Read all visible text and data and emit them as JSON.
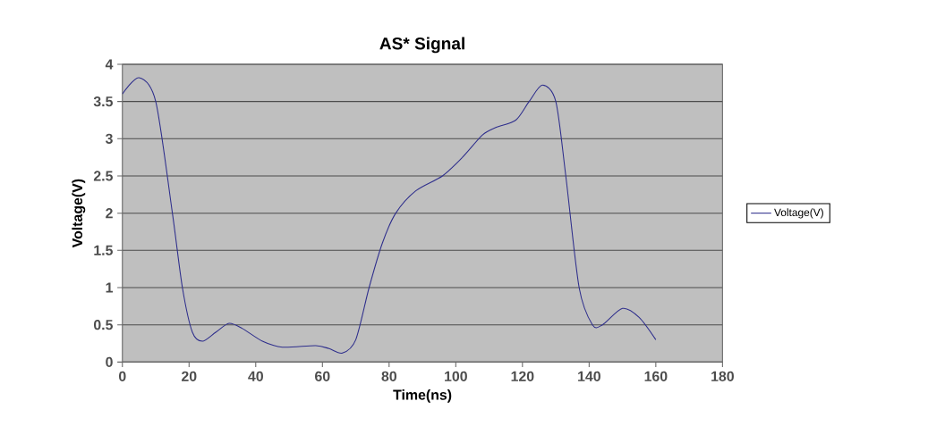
{
  "chart_data": {
    "type": "line",
    "title": "AS* Signal",
    "xlabel": "Time(ns)",
    "ylabel": "Voltage(V)",
    "xlim": [
      0,
      180
    ],
    "xticks": [
      0,
      20,
      40,
      60,
      80,
      100,
      120,
      140,
      160,
      180
    ],
    "ylim": [
      0,
      4
    ],
    "yticks": [
      0,
      0.5,
      1,
      1.5,
      2,
      2.5,
      3,
      3.5,
      4
    ],
    "grid": "y",
    "legend": "right",
    "series": [
      {
        "name": "Voltage(V)",
        "color": "#2e2e8c",
        "x": [
          0,
          5,
          10,
          15,
          18,
          21,
          24,
          28,
          32,
          36,
          42,
          48,
          58,
          62,
          66,
          70,
          74,
          78,
          82,
          88,
          96,
          102,
          108,
          112,
          118,
          122,
          126,
          130,
          133,
          137,
          141,
          144,
          150,
          155,
          160
        ],
        "values": [
          3.6,
          3.82,
          3.5,
          2.0,
          1.0,
          0.4,
          0.28,
          0.4,
          0.52,
          0.45,
          0.28,
          0.2,
          0.22,
          0.18,
          0.12,
          0.3,
          1.0,
          1.6,
          2.0,
          2.3,
          2.5,
          2.75,
          3.05,
          3.15,
          3.25,
          3.5,
          3.72,
          3.5,
          2.5,
          1.0,
          0.5,
          0.5,
          0.72,
          0.6,
          0.3
        ]
      }
    ]
  }
}
